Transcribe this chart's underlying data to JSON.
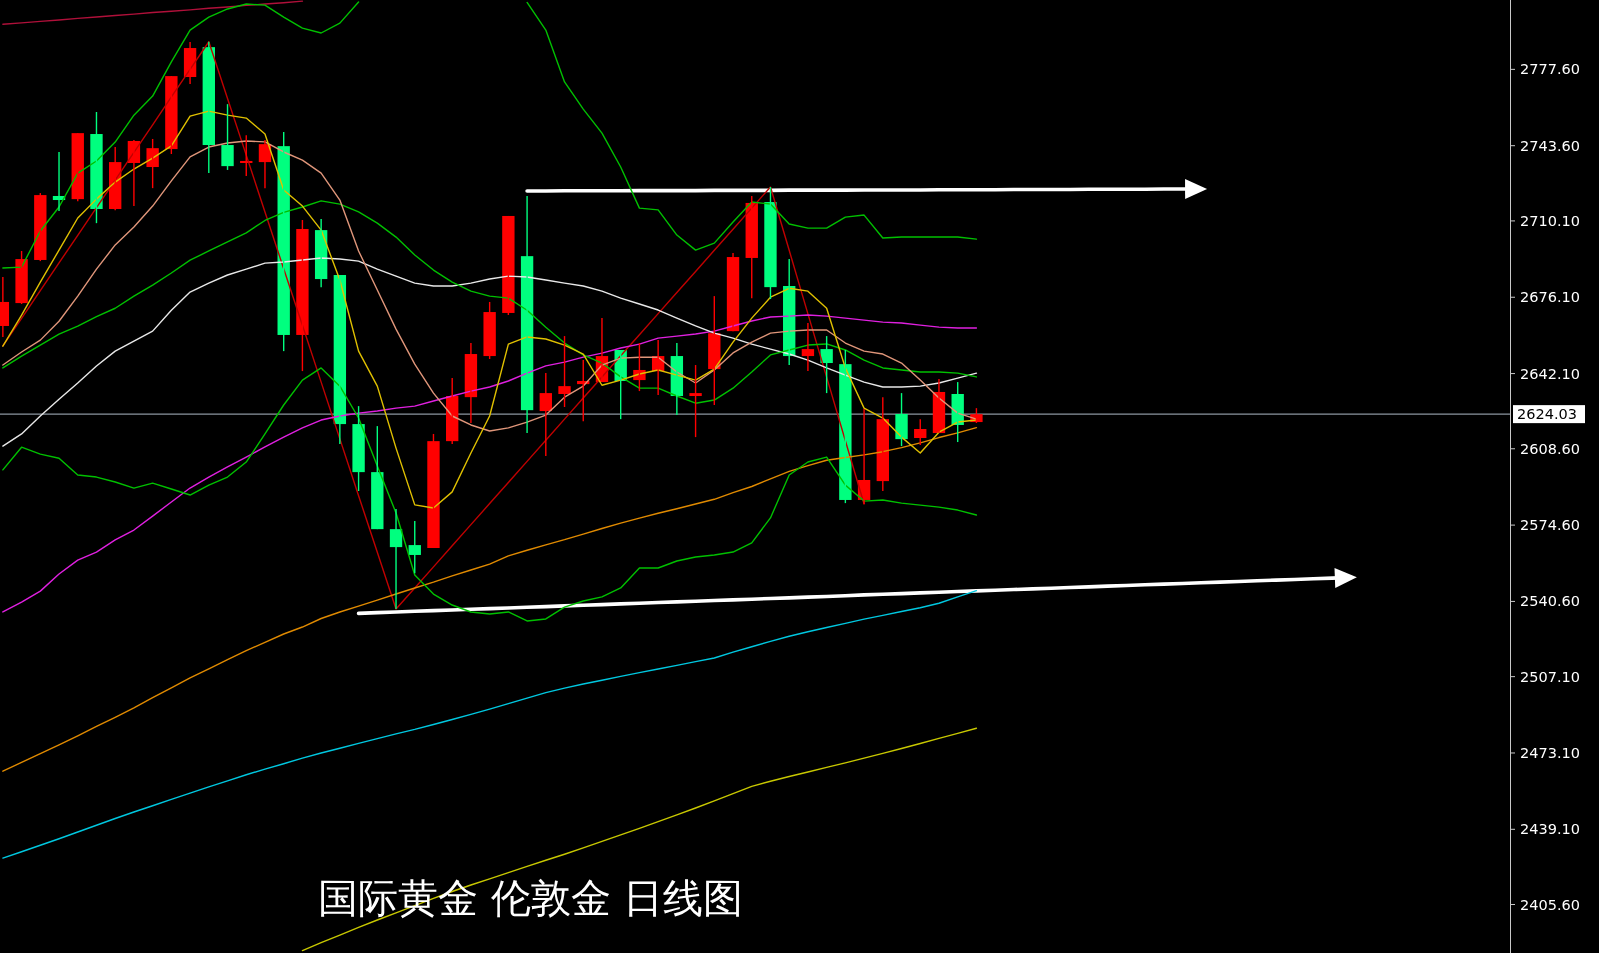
{
  "chart_data": {
    "type": "candlestick",
    "title": "国际黄金 伦敦金 日线图",
    "tick_labels": "y",
    "ylim": [
      2384.0,
      2808.5
    ],
    "yticks": [
      {
        "value": 2777.6,
        "label": "2777.60"
      },
      {
        "value": 2743.6,
        "label": "2743.60"
      },
      {
        "value": 2710.1,
        "label": "2710.10"
      },
      {
        "value": 2676.1,
        "label": "2676.10"
      },
      {
        "value": 2642.1,
        "label": "2642.10"
      },
      {
        "value": 2608.6,
        "label": "2608.60"
      },
      {
        "value": 2574.6,
        "label": "2574.60"
      },
      {
        "value": 2540.6,
        "label": "2540.60"
      },
      {
        "value": 2507.1,
        "label": "2507.10"
      },
      {
        "value": 2473.1,
        "label": "2473.10"
      },
      {
        "value": 2439.1,
        "label": "2439.10"
      },
      {
        "value": 2405.6,
        "label": "2405.60"
      }
    ],
    "ref_lines": [
      {
        "axis": "y",
        "value": 2624.03,
        "label": "2624.03",
        "color": "#8c96a0"
      }
    ],
    "categories": [
      null,
      null,
      null,
      null,
      null,
      null,
      null,
      null,
      null,
      null,
      null,
      null,
      null,
      null,
      null,
      null,
      null,
      null,
      null,
      null,
      null,
      null,
      null,
      null,
      null,
      null,
      null,
      null,
      null,
      null,
      null,
      null,
      null,
      null,
      null,
      null,
      null,
      null,
      null,
      null,
      null,
      null,
      null,
      null,
      null,
      null,
      null,
      null,
      null,
      null,
      null,
      null,
      null,
      null,
      null,
      null,
      null,
      null,
      null,
      null,
      null,
      null,
      null,
      null,
      null,
      null,
      null,
      null,
      null,
      null,
      null,
      null,
      null,
      null,
      null,
      null,
      null,
      null,
      null,
      null,
      null
    ],
    "ohlc": [
      [
        2663.3,
        2685.1,
        2658.4,
        2674.0
      ],
      [
        2673.5,
        2696.7,
        2673.1,
        2693.1
      ],
      [
        2692.7,
        2722.5,
        2692.2,
        2721.6
      ],
      [
        2721.2,
        2740.8,
        2714.5,
        2719.4
      ],
      [
        2719.8,
        2749.2,
        2718.9,
        2749.2
      ],
      [
        2748.8,
        2758.6,
        2709.1,
        2715.4
      ],
      [
        2715.4,
        2743.0,
        2714.9,
        2736.3
      ],
      [
        2735.9,
        2746.1,
        2716.7,
        2745.7
      ],
      [
        2734.1,
        2746.6,
        2724.7,
        2742.5
      ],
      [
        2742.1,
        2774.6,
        2739.9,
        2774.6
      ],
      [
        2774.2,
        2789.8,
        2771.1,
        2787.1
      ],
      [
        2787.5,
        2789.9,
        2731.4,
        2743.9
      ],
      [
        2743.9,
        2762.1,
        2732.8,
        2734.5
      ],
      [
        2735.9,
        2748.3,
        2730.1,
        2736.8
      ],
      [
        2736.3,
        2746.1,
        2724.7,
        2744.3
      ],
      [
        2743.4,
        2749.7,
        2652.1,
        2659.3
      ],
      [
        2659.3,
        2710.5,
        2643.2,
        2706.5
      ],
      [
        2706.0,
        2710.9,
        2680.6,
        2684.2
      ],
      [
        2686.0,
        2686.0,
        2610.7,
        2619.6
      ],
      [
        2619.6,
        2627.6,
        2589.8,
        2598.2
      ],
      [
        2598.2,
        2618.7,
        2572.8,
        2572.8
      ],
      [
        2572.8,
        2581.8,
        2537.2,
        2564.8
      ],
      [
        2565.7,
        2576.4,
        2553.2,
        2561.3
      ],
      [
        2564.4,
        2615.2,
        2564.4,
        2612.0
      ],
      [
        2612.0,
        2640.1,
        2610.7,
        2632.1
      ],
      [
        2631.6,
        2655.7,
        2620.1,
        2650.8
      ],
      [
        2649.9,
        2674.0,
        2648.6,
        2669.5
      ],
      [
        2669.1,
        2712.3,
        2668.2,
        2712.3
      ],
      [
        2694.4,
        2721.2,
        2615.6,
        2625.8
      ],
      [
        2625.4,
        2642.3,
        2605.4,
        2633.4
      ],
      [
        2633.0,
        2658.8,
        2627.2,
        2636.5
      ],
      [
        2637.4,
        2648.1,
        2620.9,
        2638.8
      ],
      [
        2638.3,
        2666.8,
        2638.3,
        2649.9
      ],
      [
        2652.6,
        2652.6,
        2621.8,
        2638.8
      ],
      [
        2639.2,
        2655.7,
        2634.3,
        2643.7
      ],
      [
        2643.2,
        2657.0,
        2632.5,
        2649.9
      ],
      [
        2649.9,
        2655.7,
        2623.6,
        2632.1
      ],
      [
        2632.1,
        2645.9,
        2613.8,
        2633.4
      ],
      [
        2644.1,
        2676.6,
        2628.1,
        2660.1
      ],
      [
        2661.0,
        2695.8,
        2661.0,
        2694.0
      ],
      [
        2693.6,
        2721.2,
        2675.7,
        2718.1
      ],
      [
        2718.5,
        2725.2,
        2675.3,
        2680.6
      ],
      [
        2681.1,
        2693.1,
        2645.9,
        2649.9
      ],
      [
        2649.9,
        2664.6,
        2643.2,
        2653.0
      ],
      [
        2653.0,
        2658.8,
        2633.4,
        2646.8
      ],
      [
        2646.3,
        2652.6,
        2584.4,
        2585.8
      ],
      [
        2585.8,
        2626.3,
        2584.0,
        2594.7
      ],
      [
        2594.2,
        2631.6,
        2589.8,
        2621.8
      ],
      [
        2624.1,
        2633.4,
        2609.8,
        2612.9
      ],
      [
        2613.4,
        2621.8,
        2610.3,
        2617.4
      ],
      [
        2615.6,
        2639.7,
        2615.6,
        2633.9
      ],
      [
        2633.0,
        2638.3,
        2611.6,
        2619.2
      ],
      [
        2620.5,
        2626.7,
        2620.1,
        2624.0
      ],
      null,
      null,
      null,
      null,
      null,
      null,
      null,
      null,
      null,
      null,
      null,
      null,
      null,
      null,
      null,
      null,
      null,
      null,
      null,
      null,
      null,
      null,
      null,
      null,
      null,
      null,
      null,
      null
    ],
    "colors": [
      "#ff0000",
      "#ff0000",
      "#ff0000",
      "#00ff7f",
      "#ff0000",
      "#00ff7f",
      "#ff0000",
      "#ff0000",
      "#ff0000",
      "#ff0000",
      "#ff0000",
      "#00ff7f",
      "#00ff7f",
      "#ff0000",
      "#ff0000",
      "#00ff7f",
      "#ff0000",
      "#00ff7f",
      "#00ff7f",
      "#00ff7f",
      "#00ff7f",
      "#00ff7f",
      "#00ff7f",
      "#ff0000",
      "#ff0000",
      "#ff0000",
      "#ff0000",
      "#ff0000",
      "#00ff7f",
      "#ff0000",
      "#ff0000",
      "#ff0000",
      "#ff0000",
      "#00ff7f",
      "#ff0000",
      "#ff0000",
      "#00ff7f",
      "#ff0000",
      "#ff0000",
      "#ff0000",
      "#ff0000",
      "#00ff7f",
      "#00ff7f",
      "#ff0000",
      "#00ff7f",
      "#00ff7f",
      "#ff0000",
      "#ff0000",
      "#00ff7f",
      "#ff0000",
      "#ff0000",
      "#00ff7f",
      "#ff0000",
      null,
      null,
      null,
      null,
      null,
      null,
      null,
      null,
      null,
      null,
      null,
      null,
      null,
      null,
      null,
      null,
      null,
      null,
      null,
      null,
      null,
      null,
      null,
      null,
      null,
      null,
      null,
      null
    ],
    "series": [
      {
        "type": "line",
        "color": "#ffffff",
        "values": [
          null,
          null,
          null,
          null,
          null,
          null,
          null,
          null,
          null,
          null,
          null,
          null,
          null,
          null,
          null,
          null,
          null,
          null,
          null,
          null,
          null,
          null,
          null,
          null,
          null,
          null,
          null,
          null,
          2723.4,
          2723.4,
          2723.5,
          2723.5,
          2723.5,
          2723.5,
          2723.6,
          2723.6,
          2723.6,
          2723.6,
          2723.7,
          2723.7,
          2723.7,
          2723.7,
          2723.8,
          2723.8,
          2723.8,
          2723.8,
          2723.9,
          2723.9,
          2723.9,
          2723.9,
          2724.0,
          2724.0,
          2724.0,
          2724.0,
          2724.1,
          2724.1,
          2724.1,
          2724.1,
          2724.2,
          2724.2,
          2724.2,
          2724.2,
          2724.3,
          2724.3,
          2724.3,
          null,
          null,
          null,
          null,
          null,
          null,
          null,
          null,
          null,
          null,
          null,
          null,
          null,
          null,
          null,
          null
        ]
      },
      {
        "type": "line",
        "color": "#ffffff",
        "values": [
          null,
          null,
          null,
          null,
          null,
          null,
          null,
          null,
          null,
          null,
          null,
          null,
          null,
          null,
          null,
          null,
          null,
          null,
          null,
          2535.3,
          2535.6,
          2535.9,
          2536.2,
          2536.5,
          2536.8,
          2537.1,
          2537.4,
          2537.7,
          2538.0,
          2538.3,
          2538.6,
          2538.9,
          2539.2,
          2539.5,
          2539.8,
          2540.1,
          2540.4,
          2540.7,
          2541.0,
          2541.3,
          2541.6,
          2541.9,
          2542.2,
          2542.5,
          2542.8,
          2543.1,
          2543.5,
          2543.8,
          2544.1,
          2544.4,
          2544.7,
          2545.0,
          2545.3,
          2545.6,
          2545.9,
          2546.2,
          2546.5,
          2546.8,
          2547.1,
          2547.4,
          2547.7,
          2548.0,
          2548.3,
          2548.6,
          2548.9,
          2549.2,
          2549.5,
          2549.8,
          2550.1,
          2550.4,
          2550.7,
          2551.0,
          2551.3,
          null,
          null,
          null,
          null,
          null,
          null,
          null,
          null
        ]
      },
      {
        "type": "line",
        "color": "#b0103a",
        "values": [
          2797.7,
          2798.3,
          2799.0,
          2799.6,
          2800.3,
          2800.9,
          2801.6,
          2802.2,
          2802.9,
          2803.5,
          2804.1,
          2804.8,
          2805.4,
          2806.1,
          2806.7,
          2807.3,
          2808.0,
          null,
          null,
          null,
          null,
          null,
          null,
          null,
          null,
          null,
          null,
          null,
          null,
          null,
          null,
          null,
          null,
          null,
          null,
          null,
          null,
          null,
          null,
          null,
          null,
          null,
          null,
          null,
          null,
          null,
          null,
          null,
          null,
          null,
          null,
          null,
          null,
          null,
          null,
          null,
          null,
          null,
          null,
          null,
          null,
          null,
          null,
          null,
          null,
          null,
          null,
          null,
          null,
          null,
          null,
          null,
          null,
          null,
          null,
          null,
          null,
          null,
          null,
          null,
          null
        ]
      },
      {
        "type": "line",
        "color": "#c00000",
        "values": [
          2654.4,
          2666.7,
          2679.0,
          2691.4,
          2703.7,
          2716.0,
          2728.3,
          2740.6,
          2752.9,
          2765.3,
          2777.6,
          2789.9,
          2764.6,
          2739.4,
          2714.1,
          2688.8,
          2663.6,
          2638.3,
          2613.0,
          2587.7,
          2562.5,
          2537.2,
          2546.6,
          2556.0,
          2565.4,
          2574.8,
          2584.2,
          2593.6,
          2603.0,
          2612.4,
          2621.8,
          2631.2,
          2640.6,
          2650.0,
          2659.4,
          2668.8,
          2678.2,
          2687.6,
          2697.0,
          2706.4,
          2715.8,
          2725.2,
          2697.0,
          2668.7,
          2640.5,
          2612.2,
          2584.0,
          null,
          null,
          null,
          null,
          null,
          null,
          null,
          null,
          null,
          null,
          null,
          null,
          null,
          null,
          null,
          null,
          null,
          null,
          null,
          null,
          null,
          null,
          null,
          null,
          null,
          null,
          null,
          null,
          null,
          null,
          null,
          null,
          null,
          null
        ]
      },
      {
        "type": "line",
        "color": "#c8c800",
        "values": [
          null,
          null,
          null,
          null,
          null,
          null,
          null,
          null,
          null,
          null,
          null,
          null,
          null,
          null,
          null,
          null,
          2385.1,
          2388.6,
          2392.0,
          2395.4,
          2398.7,
          2401.9,
          2405.1,
          2408.3,
          2411.4,
          2414.3,
          2417.0,
          2419.8,
          2422.6,
          2425.3,
          2428.0,
          2430.8,
          2433.7,
          2436.6,
          2439.5,
          2442.5,
          2445.5,
          2448.6,
          2451.8,
          2455.0,
          2458.2,
          2460.5,
          2462.6,
          2464.6,
          2466.7,
          2468.7,
          2470.8,
          2472.9,
          2475.1,
          2477.3,
          2479.6,
          2481.8,
          2484.1,
          null,
          null,
          null,
          null,
          null,
          null,
          null,
          null,
          null,
          null,
          null,
          null,
          null,
          null,
          null,
          null,
          null,
          null,
          null,
          null,
          null,
          null,
          null,
          null,
          null,
          null,
          null,
          null
        ]
      },
      {
        "type": "line",
        "color": "#00c8e0",
        "values": [
          2426.3,
          2429.1,
          2432.0,
          2434.9,
          2437.9,
          2440.9,
          2443.9,
          2446.8,
          2449.6,
          2452.4,
          2455.2,
          2458.0,
          2460.7,
          2463.4,
          2465.9,
          2468.3,
          2470.8,
          2473.1,
          2475.2,
          2477.4,
          2479.5,
          2481.6,
          2483.6,
          2485.8,
          2488.0,
          2490.3,
          2492.6,
          2495.1,
          2497.5,
          2500.0,
          2502.0,
          2503.8,
          2505.5,
          2507.2,
          2508.9,
          2510.5,
          2512.1,
          2513.8,
          2515.4,
          2518.0,
          2520.4,
          2522.8,
          2525.1,
          2527.1,
          2529.0,
          2530.8,
          2532.7,
          2534.4,
          2536.1,
          2537.8,
          2539.8,
          2542.6,
          2545.4,
          null,
          null,
          null,
          null,
          null,
          null,
          null,
          null,
          null,
          null,
          null,
          null,
          null,
          null,
          null,
          null,
          null,
          null,
          null,
          null,
          null,
          null,
          null,
          null,
          null,
          null,
          null,
          null
        ]
      },
      {
        "type": "line",
        "color": "#e08a00",
        "values": [
          2465.0,
          2468.9,
          2472.8,
          2476.7,
          2480.7,
          2484.9,
          2489.0,
          2493.2,
          2497.7,
          2502.1,
          2506.5,
          2510.6,
          2514.7,
          2518.7,
          2522.4,
          2526.1,
          2529.2,
          2533.0,
          2535.9,
          2538.5,
          2541.2,
          2543.9,
          2546.6,
          2549.2,
          2552.0,
          2554.6,
          2557.2,
          2560.9,
          2563.4,
          2565.8,
          2568.1,
          2570.6,
          2573.1,
          2575.5,
          2577.7,
          2579.9,
          2581.9,
          2584.0,
          2586.1,
          2589.1,
          2591.8,
          2595.2,
          2598.5,
          2601.1,
          2603.5,
          2604.7,
          2605.9,
          2607.3,
          2609.1,
          2611.2,
          2613.6,
          2615.7,
          2618.0,
          null,
          null,
          null,
          null,
          null,
          null,
          null,
          null,
          null,
          null,
          null,
          null,
          null,
          null,
          null,
          null,
          null,
          null,
          null,
          null,
          null,
          null,
          null,
          null,
          null,
          null,
          null,
          null
        ]
      },
      {
        "type": "line",
        "color": "#e020e0",
        "values": [
          2535.9,
          2540.3,
          2545.2,
          2552.8,
          2559.0,
          2562.6,
          2568.0,
          2572.4,
          2578.6,
          2584.9,
          2591.1,
          2596.0,
          2600.5,
          2604.9,
          2609.4,
          2613.8,
          2617.9,
          2621.4,
          2623.2,
          2624.5,
          2625.4,
          2626.7,
          2627.6,
          2629.9,
          2632.1,
          2634.3,
          2636.1,
          2638.8,
          2642.3,
          2645.5,
          2647.2,
          2649.4,
          2651.2,
          2653.5,
          2655.2,
          2657.9,
          2658.8,
          2659.7,
          2661.0,
          2663.3,
          2665.5,
          2667.3,
          2667.7,
          2668.2,
          2667.7,
          2666.8,
          2665.9,
          2665.0,
          2664.6,
          2663.7,
          2662.8,
          2662.4,
          2662.4,
          null,
          null,
          null,
          null,
          null,
          null,
          null,
          null,
          null,
          null,
          null,
          null,
          null,
          null,
          null,
          null,
          null,
          null,
          null,
          null,
          null,
          null,
          null,
          null,
          null,
          null,
          null,
          null
        ]
      },
      {
        "type": "line",
        "color": "#e8e8e8",
        "values": [
          2609.8,
          2615.2,
          2623.2,
          2630.7,
          2637.9,
          2645.5,
          2652.1,
          2656.6,
          2661.0,
          2670.3,
          2678.4,
          2682.4,
          2686.0,
          2688.6,
          2691.3,
          2691.8,
          2692.7,
          2693.6,
          2693.1,
          2692.2,
          2688.6,
          2685.5,
          2682.4,
          2681.1,
          2681.1,
          2682.4,
          2684.2,
          2685.5,
          2685.1,
          2683.8,
          2682.4,
          2681.1,
          2678.8,
          2675.7,
          2673.1,
          2670.4,
          2666.8,
          2663.3,
          2660.1,
          2657.9,
          2655.2,
          2653.0,
          2650.8,
          2648.1,
          2644.6,
          2641.4,
          2638.3,
          2636.1,
          2636.1,
          2636.5,
          2637.9,
          2640.1,
          2642.3,
          null,
          null,
          null,
          null,
          null,
          null,
          null,
          null,
          null,
          null,
          null,
          null,
          null,
          null,
          null,
          null,
          null,
          null,
          null,
          null,
          null,
          null,
          null,
          null,
          null,
          null,
          null,
          null
        ]
      },
      {
        "type": "line",
        "color": "#00c000",
        "values": [
          2689.1,
          2689.5,
          2705.6,
          2716.3,
          2731.4,
          2736.8,
          2745.2,
          2757.2,
          2765.7,
          2780.9,
          2795.1,
          2800.9,
          2804.5,
          2806.7,
          2806.2,
          2800.9,
          2796.0,
          2793.8,
          2798.2,
          2807.6,
          null,
          null,
          null,
          null,
          null,
          null,
          null,
          null,
          2807.4,
          2795.1,
          2772.0,
          2759.9,
          2749.2,
          2734.1,
          2715.8,
          2715.0,
          2703.8,
          2697.1,
          2700.2,
          2709.6,
          2718.5,
          2717.6,
          2708.7,
          2706.9,
          2706.9,
          2711.8,
          2712.7,
          2702.5,
          2702.9,
          2702.9,
          2702.9,
          2702.9,
          2702.0,
          null,
          null,
          null,
          null,
          null,
          null,
          null,
          null,
          null,
          null,
          null,
          null,
          null,
          null,
          null,
          null,
          null,
          null,
          null,
          null,
          null,
          null,
          null,
          null,
          null,
          null,
          null,
          null
        ]
      },
      {
        "type": "line",
        "color": "#00c000",
        "values": [
          2599.2,
          2609.3,
          2606.2,
          2604.4,
          2596.9,
          2596.0,
          2593.8,
          2591.1,
          2593.3,
          2590.7,
          2588.0,
          2592.4,
          2596.0,
          2602.7,
          2615.2,
          2628.1,
          2639.2,
          2644.6,
          2636.5,
          2622.3,
          2600.9,
          2580.0,
          2552.4,
          2543.9,
          2539.0,
          2535.9,
          2535.0,
          2535.9,
          2531.9,
          2532.8,
          2538.1,
          2540.8,
          2542.6,
          2546.6,
          2555.5,
          2555.5,
          2558.6,
          2560.4,
          2561.3,
          2562.6,
          2566.7,
          2577.8,
          2596.9,
          2602.7,
          2604.9,
          2592.4,
          2585.3,
          2585.8,
          2584.4,
          2583.5,
          2582.6,
          2581.3,
          2579.1,
          null,
          null,
          null,
          null,
          null,
          null,
          null,
          null,
          null,
          null,
          null,
          null,
          null,
          null,
          null,
          null,
          null,
          null,
          null,
          null,
          null,
          null,
          null,
          null,
          null,
          null,
          null,
          null
        ]
      },
      {
        "type": "line",
        "color": "#00c000",
        "values": [
          2644.6,
          2649.9,
          2654.8,
          2659.7,
          2663.2,
          2667.5,
          2671.2,
          2676.6,
          2681.5,
          2686.9,
          2692.6,
          2696.7,
          2700.8,
          2704.8,
          2710.3,
          2713.9,
          2716.3,
          2719.0,
          2717.6,
          2714.1,
          2709.1,
          2702.9,
          2694.9,
          2688.2,
          2682.8,
          2678.8,
          2676.6,
          2675.7,
          2670.3,
          2662.7,
          2655.7,
          2650.4,
          2646.8,
          2640.6,
          2635.6,
          2635.6,
          2632.1,
          2628.9,
          2630.3,
          2635.6,
          2642.8,
          2650.4,
          2652.6,
          2654.8,
          2655.3,
          2652.6,
          2648.1,
          2644.6,
          2643.7,
          2642.8,
          2642.8,
          2642.3,
          2640.6,
          null,
          null,
          null,
          null,
          null,
          null,
          null,
          null,
          null,
          null,
          null,
          null,
          null,
          null,
          null,
          null,
          null,
          null,
          null,
          null,
          null,
          null,
          null,
          null,
          null,
          null,
          null,
          null
        ]
      },
      {
        "type": "line",
        "color": "#e0967a",
        "values": [
          2645.9,
          2651.7,
          2657.0,
          2665.4,
          2676.6,
          2688.6,
          2699.4,
          2707.4,
          2716.7,
          2727.9,
          2738.6,
          2743.0,
          2744.8,
          2745.7,
          2745.3,
          2740.8,
          2737.2,
          2731.4,
          2719.4,
          2696.7,
          2679.3,
          2661.9,
          2646.3,
          2633.4,
          2623.2,
          2619.2,
          2616.5,
          2617.9,
          2620.5,
          2623.6,
          2631.6,
          2636.5,
          2645.9,
          2649.0,
          2649.4,
          2649.4,
          2642.8,
          2637.9,
          2643.7,
          2651.3,
          2656.1,
          2660.1,
          2661.0,
          2661.5,
          2661.5,
          2655.7,
          2652.1,
          2650.8,
          2646.8,
          2639.2,
          2631.2,
          2624.5,
          2621.8,
          null,
          null,
          null,
          null,
          null,
          null,
          null,
          null,
          null,
          null,
          null,
          null,
          null,
          null,
          null,
          null,
          null,
          null,
          null,
          null,
          null,
          null,
          null,
          null,
          null,
          null,
          null,
          null
        ]
      },
      {
        "type": "line",
        "color": "#e0c000",
        "values": [
          2654.3,
          2668.1,
          2682.8,
          2697.1,
          2711.4,
          2719.8,
          2727.4,
          2733.2,
          2738.1,
          2743.5,
          2756.8,
          2759.0,
          2757.2,
          2755.9,
          2748.8,
          2723.9,
          2716.7,
          2706.0,
          2683.8,
          2652.1,
          2636.5,
          2608.9,
          2583.6,
          2582.2,
          2589.4,
          2606.7,
          2623.2,
          2655.2,
          2658.4,
          2657.5,
          2654.8,
          2650.8,
          2636.9,
          2639.2,
          2641.9,
          2643.7,
          2641.4,
          2639.2,
          2644.1,
          2656.1,
          2666.8,
          2676.1,
          2680.1,
          2678.8,
          2671.2,
          2644.6,
          2626.7,
          2622.3,
          2613.8,
          2606.7,
          2616.0,
          2620.5,
          2621.4,
          null,
          null,
          null,
          null,
          null,
          null,
          null,
          null,
          null,
          null,
          null,
          null,
          null,
          null,
          null,
          null,
          null,
          null,
          null,
          null,
          null,
          null,
          null,
          null,
          null,
          null,
          null,
          null
        ]
      }
    ]
  }
}
